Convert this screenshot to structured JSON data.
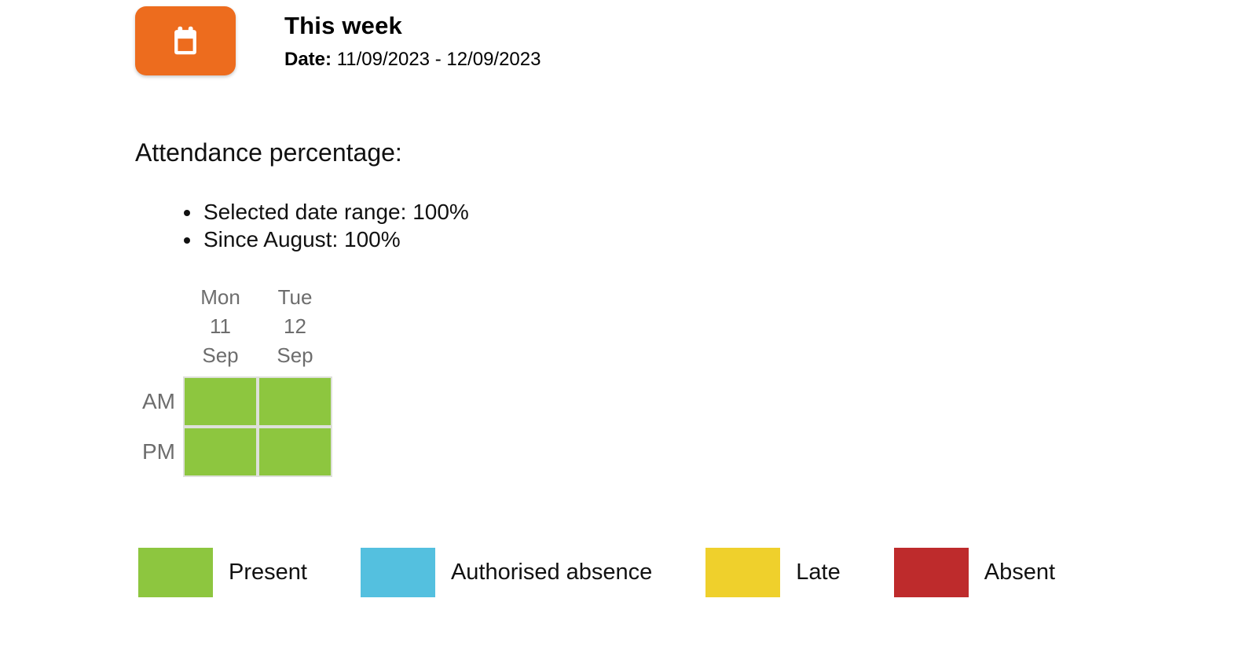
{
  "header": {
    "icon": "calendar-icon",
    "icon_bg": "#ED6C1E",
    "title": "This week",
    "date_label": "Date:",
    "date_value": "11/09/2023 - 12/09/2023"
  },
  "attendance": {
    "heading": "Attendance percentage:",
    "bullets": [
      "Selected date range: 100%",
      "Since August: 100%"
    ]
  },
  "grid": {
    "columns": [
      {
        "day": "Mon",
        "date": "11",
        "month": "Sep"
      },
      {
        "day": "Tue",
        "date": "12",
        "month": "Sep"
      }
    ],
    "rows": [
      {
        "label": "AM",
        "cells": [
          "present",
          "present"
        ]
      },
      {
        "label": "PM",
        "cells": [
          "present",
          "present"
        ]
      }
    ]
  },
  "legend": {
    "items": [
      {
        "status": "present",
        "label": "Present",
        "color": "#8DC63F"
      },
      {
        "status": "authorised-absence",
        "label": "Authorised absence",
        "color": "#54C0DF"
      },
      {
        "status": "late",
        "label": "Late",
        "color": "#EFD02C"
      },
      {
        "status": "absent",
        "label": "Absent",
        "color": "#BE2B2C"
      }
    ]
  }
}
